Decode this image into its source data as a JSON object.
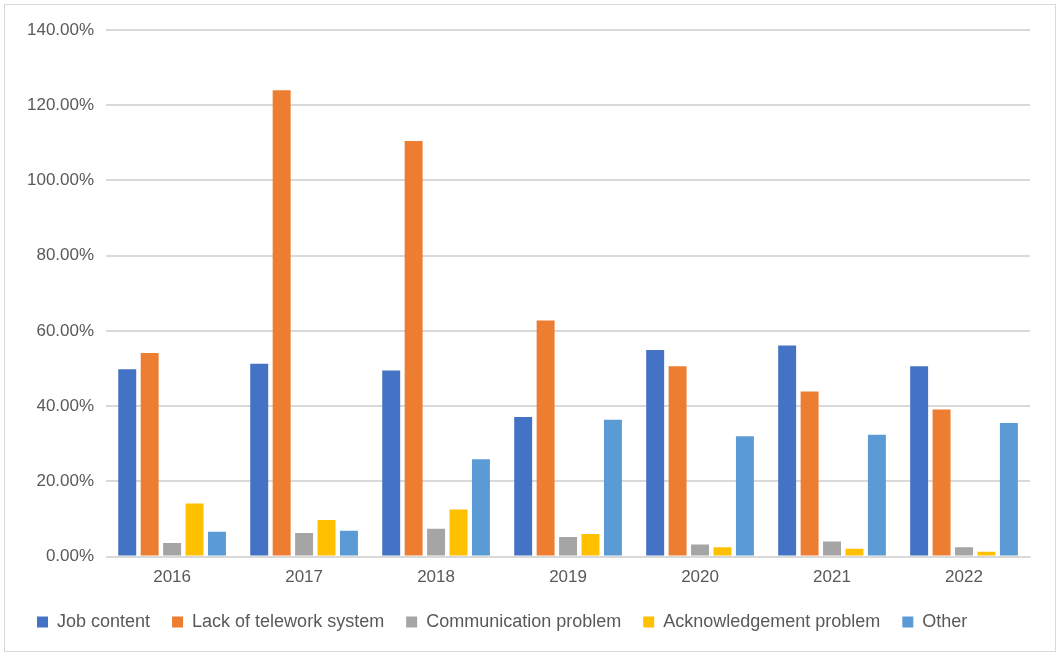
{
  "chart_data": {
    "type": "bar",
    "categories": [
      "2016",
      "2017",
      "2018",
      "2019",
      "2020",
      "2021",
      "2022"
    ],
    "series": [
      {
        "name": "Job content",
        "color": "#4472c4",
        "values": [
          49.8,
          51.3,
          49.5,
          37.1,
          54.9,
          56.1,
          50.6
        ]
      },
      {
        "name": "Lack of telework system",
        "color": "#ed7d31",
        "values": [
          54.1,
          124,
          110.5,
          62.8,
          50.6,
          43.9,
          39.1
        ]
      },
      {
        "name": "Communication problem",
        "color": "#a5a5a5",
        "values": [
          3.6,
          6.3,
          7.4,
          5.2,
          3.2,
          4.0,
          2.5
        ]
      },
      {
        "name": "Acknowledgement problem",
        "color": "#ffc000",
        "values": [
          14.1,
          9.7,
          12.5,
          6.0,
          2.5,
          2.1,
          1.3
        ]
      },
      {
        "name": "Other",
        "color": "#5b9bd5",
        "values": [
          6.6,
          6.9,
          25.9,
          36.4,
          32.0,
          32.4,
          35.5
        ]
      }
    ],
    "ylim": [
      0,
      140
    ],
    "yticks": [
      {
        "value": 0,
        "label": "0.00%"
      },
      {
        "value": 20,
        "label": "20.00%"
      },
      {
        "value": 40,
        "label": "40.00%"
      },
      {
        "value": 60,
        "label": "60.00%"
      },
      {
        "value": 80,
        "label": "80.00%"
      },
      {
        "value": 100,
        "label": "100.00%"
      },
      {
        "value": 120,
        "label": "120.00%"
      },
      {
        "value": 140,
        "label": "140.00%"
      }
    ],
    "grid": "y",
    "legend": "bottom"
  }
}
